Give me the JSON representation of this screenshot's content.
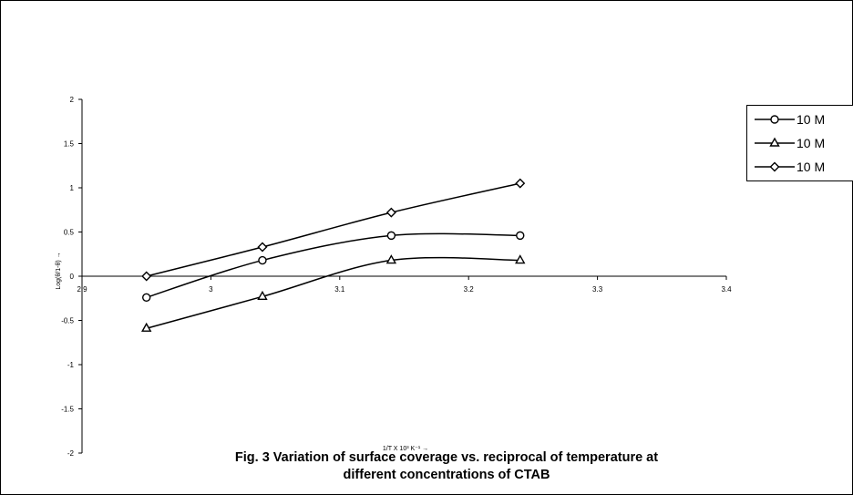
{
  "chart_data": {
    "type": "line",
    "xlabel": "1/T X 10³ K⁻¹ →",
    "ylabel": "Log(θ/1-θ) →",
    "xlim": [
      2.9,
      3.4
    ],
    "ylim": [
      -2,
      2
    ],
    "x_ticks": [
      "2.9",
      "3",
      "3.1",
      "3.2",
      "3.3",
      "3.4"
    ],
    "y_ticks": [
      "2",
      "1.5",
      "1",
      "0.5",
      "0",
      "-0.5",
      "-1",
      "-1.5",
      "-2"
    ],
    "grid": false,
    "legend_position": "right",
    "series": [
      {
        "name": "10 M",
        "marker": "circle",
        "x": [
          2.95,
          3.04,
          3.14,
          3.24
        ],
        "y": [
          -0.24,
          0.18,
          0.46,
          0.46
        ]
      },
      {
        "name": "10 M",
        "marker": "triangle",
        "x": [
          2.95,
          3.04,
          3.14,
          3.24
        ],
        "y": [
          -0.59,
          -0.23,
          0.18,
          0.18
        ]
      },
      {
        "name": "10 M",
        "marker": "diamond",
        "x": [
          2.95,
          3.04,
          3.14,
          3.24
        ],
        "y": [
          0.0,
          0.33,
          0.72,
          1.05
        ]
      }
    ]
  },
  "caption": {
    "line1": "Fig. 3  Variation of surface coverage vs. reciprocal of temperature at",
    "line2": "different concentrations of CTAB"
  }
}
